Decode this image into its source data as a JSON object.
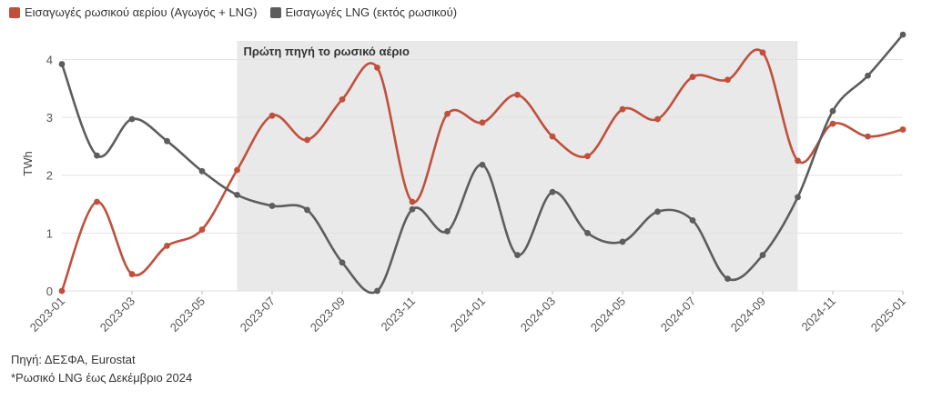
{
  "legend": [
    {
      "label": "Εισαγωγές ρωσικού αερίου (Αγωγός + LNG)",
      "color": "#c0503c"
    },
    {
      "label": "Εισαγωγές LNG (εκτός ρωσικού)",
      "color": "#5d5d5d"
    }
  ],
  "footer": {
    "source": "Πηγή: ΔΕΣΦΑ, Eurostat",
    "note": "*Ρωσικό LNG έως Δεκέμβριο 2024"
  },
  "chart_data": {
    "type": "line",
    "title": "",
    "xlabel": "",
    "ylabel": "TWh",
    "ylim": [
      0,
      4.4
    ],
    "yticks": [
      0,
      1,
      2,
      3,
      4
    ],
    "grid": true,
    "legend_position": "top-left",
    "x": [
      "2023-01",
      "2023-02",
      "2023-03",
      "2023-04",
      "2023-05",
      "2023-06",
      "2023-07",
      "2023-08",
      "2023-09",
      "2023-10",
      "2023-11",
      "2023-12",
      "2024-01",
      "2024-02",
      "2024-03",
      "2024-04",
      "2024-05",
      "2024-06",
      "2024-07",
      "2024-08",
      "2024-09",
      "2024-10",
      "2024-11",
      "2024-12",
      "2025-01"
    ],
    "xtick_labels": [
      "2023-01",
      "2023-03",
      "2023-05",
      "2023-07",
      "2023-09",
      "2023-11",
      "2024-01",
      "2024-03",
      "2024-05",
      "2024-07",
      "2024-09",
      "2024-11",
      "2025-01"
    ],
    "series": [
      {
        "name": "Εισαγωγές ρωσικού αερίου (Αγωγός + LNG)",
        "color": "#c0503c",
        "values": [
          0.0,
          1.54,
          0.29,
          0.78,
          1.06,
          2.09,
          3.03,
          2.61,
          3.31,
          3.86,
          1.54,
          3.06,
          2.91,
          3.39,
          2.67,
          2.33,
          3.14,
          2.97,
          3.7,
          3.65,
          4.12,
          2.25,
          2.89,
          2.67,
          2.79
        ]
      },
      {
        "name": "Εισαγωγές LNG (εκτός ρωσικού)",
        "color": "#5d5d5d",
        "values": [
          3.92,
          2.34,
          2.97,
          2.59,
          2.07,
          1.66,
          1.47,
          1.4,
          0.49,
          0.0,
          1.41,
          1.03,
          2.18,
          0.62,
          1.71,
          1.0,
          0.85,
          1.37,
          1.22,
          0.21,
          0.62,
          1.62,
          3.11,
          3.72,
          4.43
        ]
      }
    ],
    "annotation": {
      "label": "Πρώτη πηγή το ρωσικό αέριο",
      "x_start": "2023-06",
      "x_end": "2024-10",
      "color": "#e9e9e9"
    }
  }
}
